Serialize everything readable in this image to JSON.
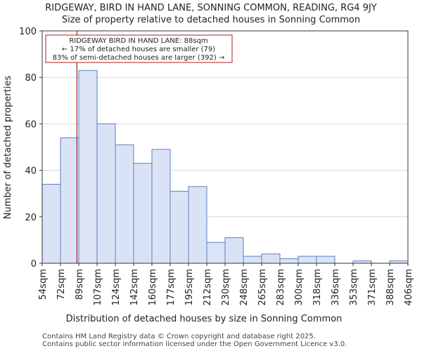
{
  "chart_data": {
    "type": "histogram",
    "title_line1": "RIDGEWAY, BIRD IN HAND LANE, SONNING COMMON, READING, RG4 9JY",
    "title_line2": "Size of property relative to detached houses in Sonning Common",
    "xlabel": "Distribution of detached houses by size in Sonning Common",
    "ylabel": "Number of detached properties",
    "ylim": [
      0,
      100
    ],
    "yticks": [
      0,
      20,
      40,
      60,
      80,
      100
    ],
    "categories": [
      "54sqm",
      "72sqm",
      "89sqm",
      "107sqm",
      "124sqm",
      "142sqm",
      "160sqm",
      "177sqm",
      "195sqm",
      "212sqm",
      "230sqm",
      "248sqm",
      "265sqm",
      "283sqm",
      "300sqm",
      "318sqm",
      "336sqm",
      "353sqm",
      "371sqm",
      "388sqm",
      "406sqm"
    ],
    "values": [
      34,
      54,
      83,
      60,
      51,
      43,
      49,
      31,
      33,
      9,
      11,
      3,
      4,
      2,
      3,
      3,
      0,
      1,
      0,
      1
    ],
    "marker_bin_position": 1.9,
    "annotation": {
      "line1": "RIDGEWAY BIRD IN HAND LANE: 88sqm",
      "line2": "← 17% of detached houses are smaller (79)",
      "line3": "83% of semi-detached houses are larger (392) →"
    },
    "colors": {
      "bar_fill": "#dae3f5",
      "bar_stroke": "#5b7fc1",
      "marker": "#b01c1c",
      "grid": "#d0d8e8"
    }
  },
  "footer": {
    "line1": "Contains HM Land Registry data © Crown copyright and database right 2025.",
    "line2": "Contains public sector information licensed under the Open Government Licence v3.0."
  }
}
